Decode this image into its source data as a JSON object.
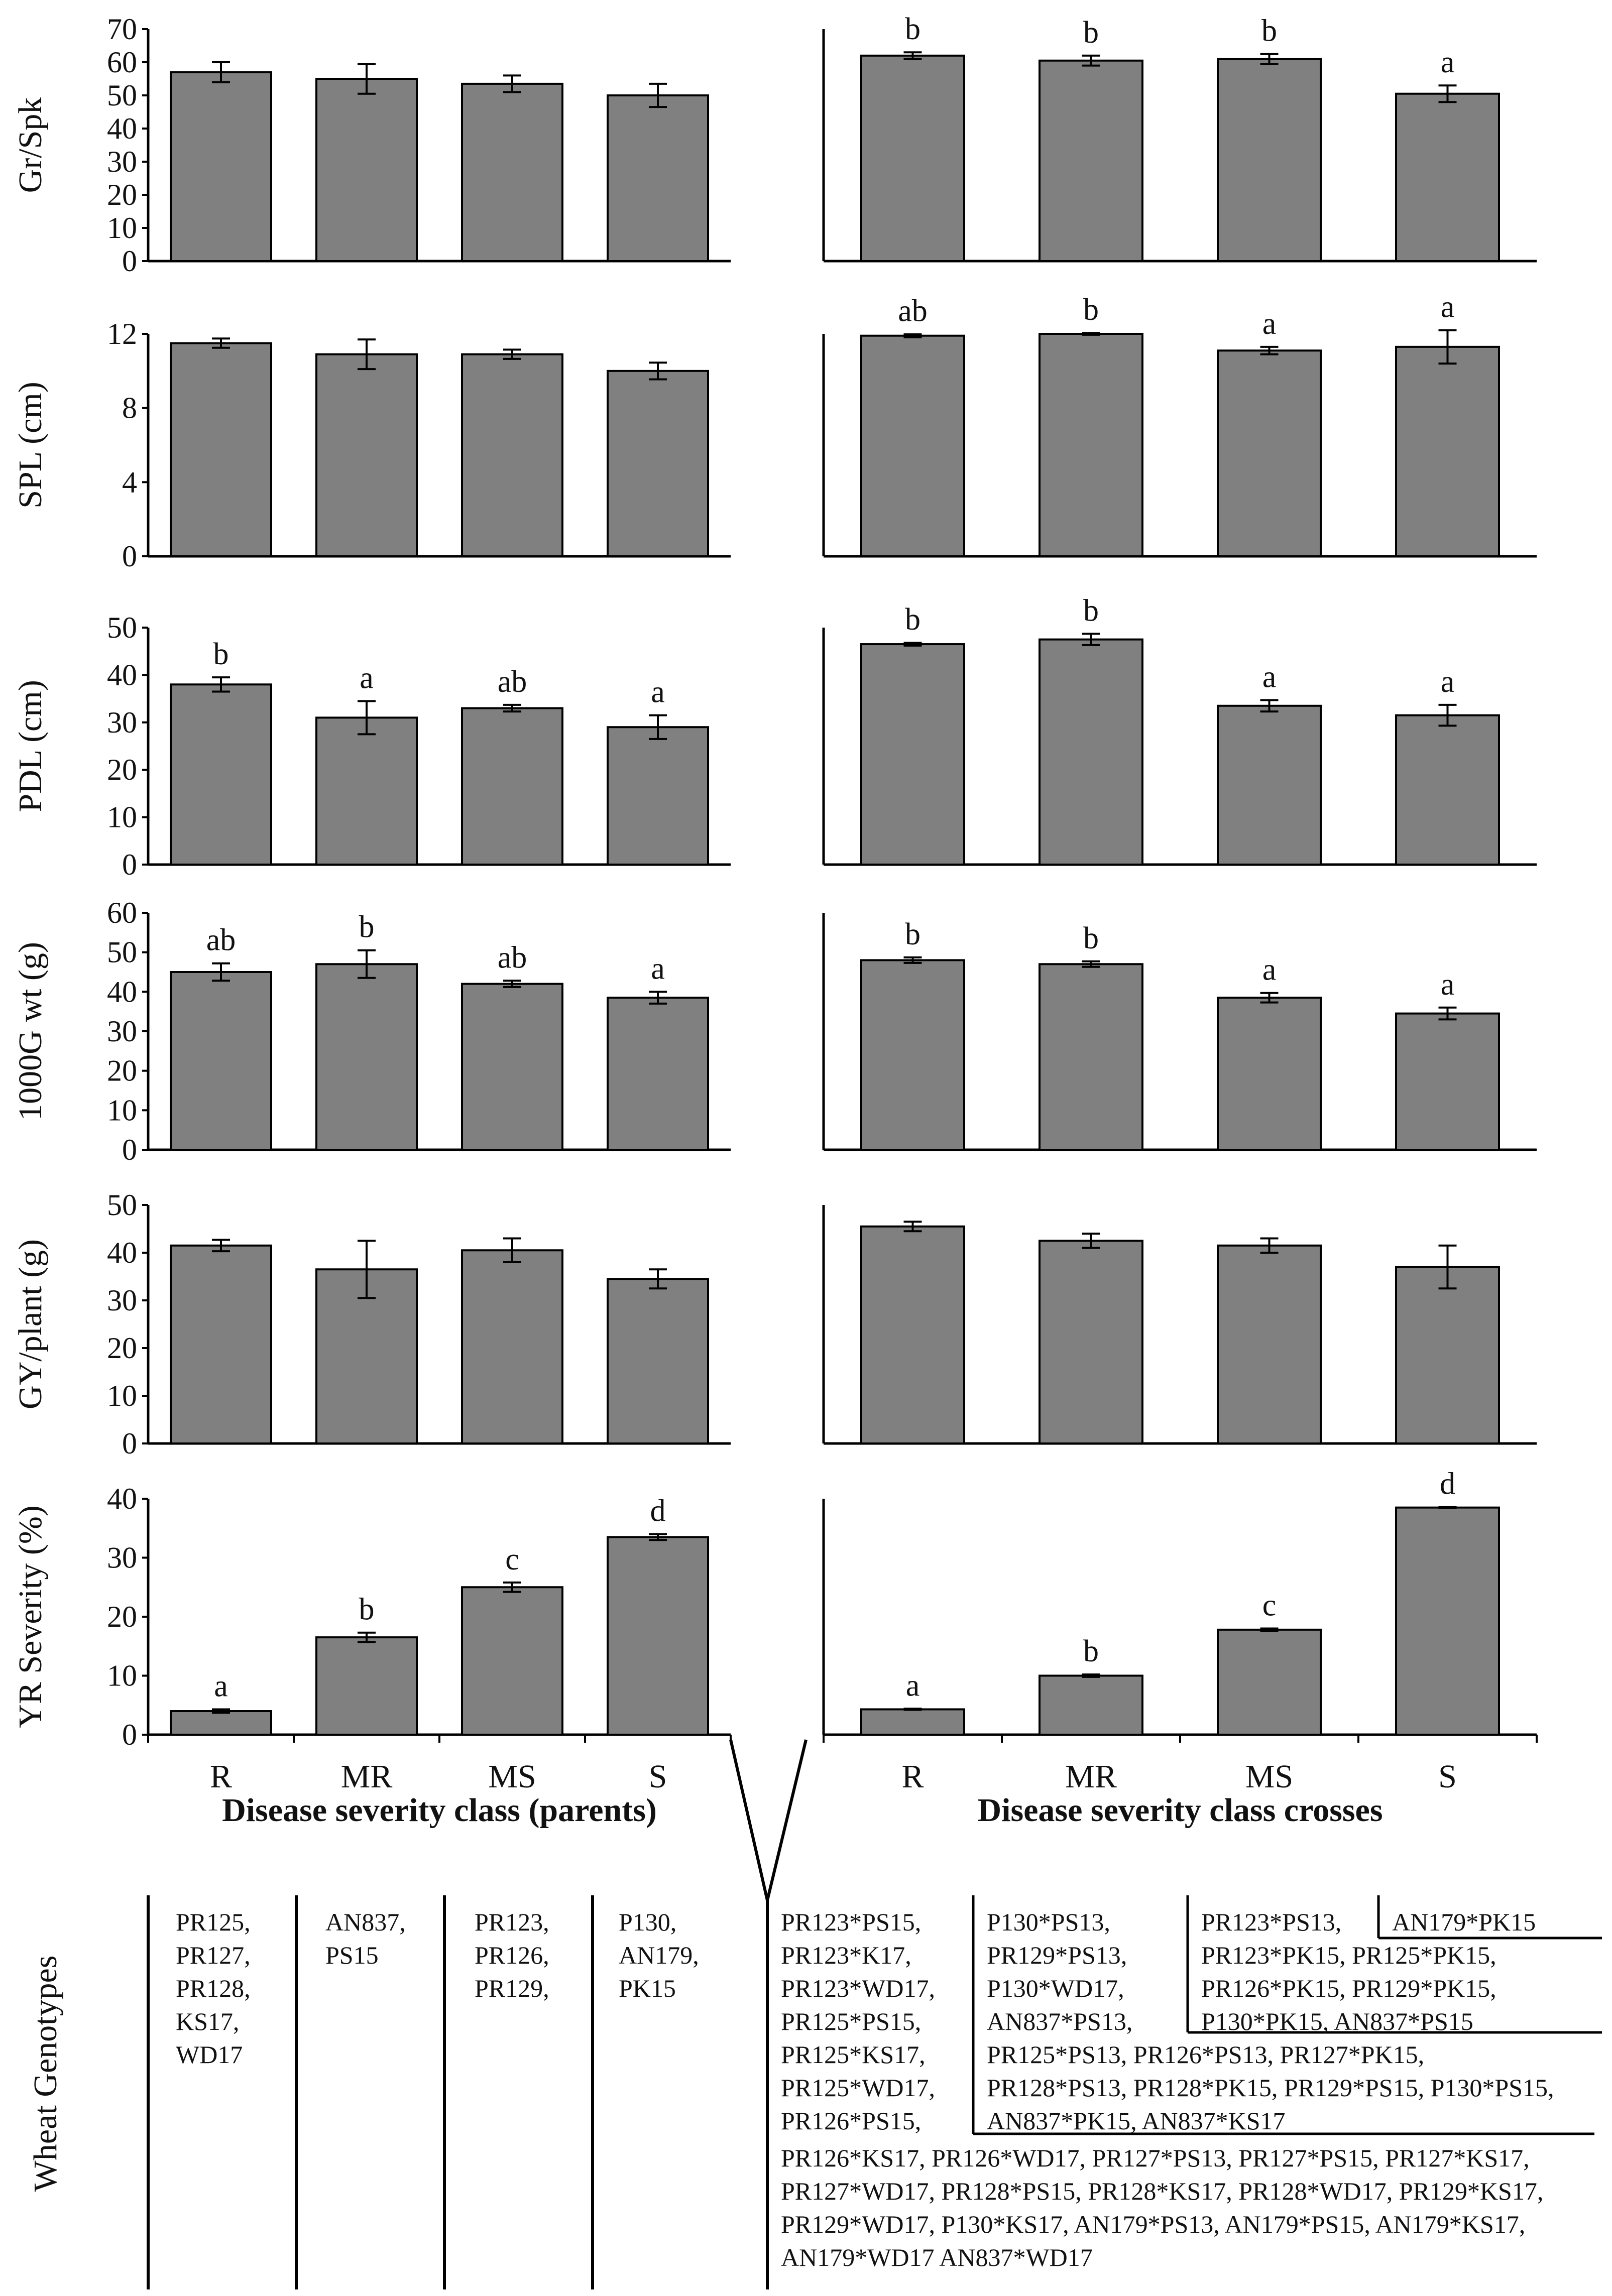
{
  "chart_data": {
    "type": "bar",
    "bar_color": "#808080",
    "categories": [
      "R",
      "MR",
      "MS",
      "S"
    ],
    "x_title_parents": "Disease severity class (parents)",
    "x_title_crosses": "Disease severity class crosses",
    "panels": [
      {
        "ylabel": "Gr/Spk",
        "ylim": [
          0,
          70
        ],
        "yticks": [
          "0",
          "10",
          "20",
          "30",
          "40",
          "50",
          "60",
          "70"
        ],
        "parents": {
          "values": [
            57,
            55,
            53.5,
            50
          ],
          "errors": [
            3,
            4.5,
            2.5,
            3.5
          ],
          "letters": []
        },
        "crosses": {
          "values": [
            62,
            60.5,
            61,
            50.5
          ],
          "errors": [
            1,
            1.5,
            1.5,
            2.5
          ],
          "letters": [
            "b",
            "b",
            "b",
            "a"
          ]
        }
      },
      {
        "ylabel": "SPL (cm)",
        "ylim": [
          0,
          12
        ],
        "yticks": [
          "0",
          "4",
          "8",
          "12"
        ],
        "parents": {
          "values": [
            11.5,
            10.9,
            10.9,
            10
          ],
          "errors": [
            0.25,
            0.8,
            0.25,
            0.45
          ],
          "letters": []
        },
        "crosses": {
          "values": [
            11.9,
            12,
            11.1,
            11.3
          ],
          "errors": [
            0.08,
            0.05,
            0.2,
            0.9
          ],
          "letters": [
            "ab",
            "b",
            "a",
            "a"
          ]
        }
      },
      {
        "ylabel": "PDL (cm)",
        "ylim": [
          0,
          50
        ],
        "yticks": [
          "0",
          "10",
          "20",
          "30",
          "40",
          "50"
        ],
        "parents": {
          "values": [
            38,
            31,
            33,
            29
          ],
          "errors": [
            1.5,
            3.5,
            0.7,
            2.5
          ],
          "letters": [
            "b",
            "a",
            "ab",
            "a"
          ]
        },
        "crosses": {
          "values": [
            46.5,
            47.5,
            33.5,
            31.5
          ],
          "errors": [
            0.3,
            1.2,
            1.2,
            2.2
          ],
          "letters": [
            "b",
            "b",
            "a",
            "a"
          ]
        }
      },
      {
        "ylabel": "1000G wt (g)",
        "ylim": [
          0,
          60
        ],
        "yticks": [
          "0",
          "10",
          "20",
          "30",
          "40",
          "50",
          "60"
        ],
        "parents": {
          "values": [
            45,
            47,
            42,
            38.5
          ],
          "errors": [
            2.2,
            3.5,
            0.8,
            1.5
          ],
          "letters": [
            "ab",
            "b",
            "ab",
            "a"
          ]
        },
        "crosses": {
          "values": [
            48,
            47,
            38.5,
            34.5
          ],
          "errors": [
            0.7,
            0.7,
            1.2,
            1.5
          ],
          "letters": [
            "b",
            "b",
            "a",
            "a"
          ]
        }
      },
      {
        "ylabel": "GY/plant (g)",
        "ylim": [
          0,
          50
        ],
        "yticks": [
          "0",
          "10",
          "20",
          "30",
          "40",
          "50"
        ],
        "parents": {
          "values": [
            41.5,
            36.5,
            40.5,
            34.5
          ],
          "errors": [
            1.2,
            6,
            2.5,
            2
          ],
          "letters": []
        },
        "crosses": {
          "values": [
            45.5,
            42.5,
            41.5,
            37
          ],
          "errors": [
            1,
            1.5,
            1.5,
            4.5
          ],
          "letters": []
        }
      },
      {
        "ylabel": "YR Severity (%)",
        "ylim": [
          0,
          40
        ],
        "yticks": [
          "0",
          "10",
          "20",
          "30",
          "40"
        ],
        "parents": {
          "values": [
            4,
            16.5,
            25,
            33.5
          ],
          "errors": [
            0.3,
            0.8,
            0.8,
            0.5
          ],
          "letters": [
            "a",
            "b",
            "c",
            "d"
          ]
        },
        "crosses": {
          "values": [
            4.3,
            10,
            17.8,
            38.5
          ],
          "errors": [
            0.1,
            0.2,
            0.2,
            0.1
          ],
          "letters": [
            "a",
            "b",
            "c",
            "d"
          ]
        }
      }
    ]
  },
  "genotypes": {
    "title": "Wheat Genotypes",
    "parents": [
      [
        "PR125,",
        "PR127,",
        "PR128,",
        "KS17,",
        "WD17"
      ],
      [
        "AN837,",
        "PS15"
      ],
      [
        "PR123,",
        "PR126,",
        "PR129,"
      ],
      [
        "P130,",
        "AN179,",
        "PK15"
      ]
    ],
    "crosses_R": [
      "PR123*PS15,",
      "PR123*K17,",
      "PR123*WD17,",
      "PR125*PS15,",
      "PR125*KS17,",
      "PR125*WD17,",
      "PR126*PS15,"
    ],
    "crosses_R_wide": [
      "PR126*KS17, PR126*WD17, PR127*PS13, PR127*PS15, PR127*KS17,",
      "PR127*WD17, PR128*PS15, PR128*KS17, PR128*WD17, PR129*KS17,",
      "PR129*WD17, P130*KS17, AN179*PS13, AN179*PS15, AN179*KS17,",
      "AN179*WD17 AN837*WD17"
    ],
    "crosses_MR": [
      "P130*PS13,",
      "PR129*PS13,",
      "P130*WD17,",
      "AN837*PS13,"
    ],
    "crosses_MR_wide": [
      "PR125*PS13, PR126*PS13, PR127*PK15,",
      "PR128*PS13, PR128*PK15, PR129*PS15, P130*PS15,",
      "AN837*PK15, AN837*KS17"
    ],
    "crosses_MS": [
      "PR123*PS13,",
      "PR123*PK15, PR125*PK15,",
      "PR126*PK15, PR129*PK15,",
      "P130*PK15, AN837*PS15"
    ],
    "crosses_S": [
      "AN179*PK15"
    ]
  }
}
